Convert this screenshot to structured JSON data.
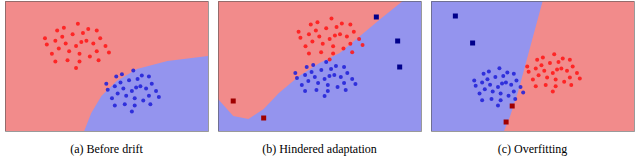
{
  "chart_data": [
    {
      "type": "scatter",
      "title": "(a) Before drift",
      "xlim": [
        0,
        10
      ],
      "ylim": [
        0,
        6.5
      ],
      "tick_labels": false,
      "regions": [
        {
          "color": "#f28b8b",
          "x": [
            0,
            10,
            10,
            0
          ],
          "y": [
            0,
            0,
            6.5,
            6.5
          ]
        },
        {
          "color": "#9494ee",
          "x": [
            3.9,
            4.25,
            4.75,
            5.5,
            6.5,
            8,
            10,
            10
          ],
          "y": [
            0,
            0.9,
            1.75,
            2.5,
            3.1,
            3.5,
            3.75,
            0
          ]
        }
      ],
      "series": [
        {
          "color": "#ff1a1a",
          "marker": "circle",
          "x": [
            3.5,
            4.01,
            2.99,
            3.67,
            3.16,
            4.35,
            2.65,
            3.84,
            3.33,
            4.18,
            2.82,
            4.69,
            2.31,
            4.52,
            2.48,
            3.67,
            3.08,
            4.1,
            2.9,
            4.95,
            2.06,
            3.59,
            3.5,
            4.52,
            2.48,
            4.61,
            2.57,
            5.12,
            1.97,
            3.76
          ],
          "values": [
            4.25,
            4.51,
            4.38,
            3.86,
            3.99,
            4.38,
            4.12,
            4.9,
            4.84,
            3.73,
            4.71,
            4.64,
            3.86,
            3.99,
            4.51,
            3.47,
            3.54,
            5.1,
            5.16,
            4.25,
            4.32,
            5.36,
            3.15,
            5.03,
            3.47,
            3.54,
            5.03,
            3.93,
            4.64,
            4.45
          ]
        },
        {
          "color": "#2424d8",
          "marker": "circle",
          "x": [
            6.25,
            6.67,
            5.83,
            6.39,
            5.97,
            6.95,
            5.55,
            6.53,
            6.11,
            6.81,
            5.69,
            7.23,
            5.27,
            7.09,
            5.41,
            6.39,
            5.9,
            6.74,
            5.76,
            7.44,
            5.06,
            6.32,
            6.25,
            7.09,
            5.41,
            7.16,
            5.48,
            7.58,
            4.99,
            6.46
          ],
          "values": [
            2.0,
            2.24,
            2.12,
            1.64,
            1.76,
            2.12,
            1.88,
            2.6,
            2.54,
            1.52,
            2.42,
            2.36,
            1.64,
            1.76,
            2.24,
            1.28,
            1.34,
            2.78,
            2.84,
            2.0,
            2.06,
            3.02,
            0.98,
            2.72,
            1.28,
            1.34,
            2.72,
            1.7,
            2.36,
            2.18
          ]
        }
      ]
    },
    {
      "type": "scatter",
      "title": "(b) Hindered adaptation",
      "xlim": [
        0,
        10
      ],
      "ylim": [
        0,
        6.5
      ],
      "tick_labels": false,
      "regions": [
        {
          "color": "#9494ee",
          "x": [
            0,
            10,
            10,
            0
          ],
          "y": [
            0,
            0,
            6.5,
            6.5
          ]
        },
        {
          "color": "#f28b8b",
          "x": [
            0,
            0,
            0.75,
            1.5,
            2.25,
            3,
            4,
            5,
            6,
            7,
            8,
            9.1
          ],
          "y": [
            6.5,
            1.6,
            0.75,
            0.6,
            1.1,
            1.9,
            2.75,
            3.4,
            3.9,
            4.75,
            5.6,
            6.5
          ]
        }
      ],
      "series": [
        {
          "color": "#ff1a1a",
          "marker": "circle",
          "x": [
            5.5,
            6.01,
            4.99,
            5.67,
            5.16,
            6.35,
            4.65,
            5.84,
            5.33,
            6.18,
            4.82,
            6.69,
            4.31,
            6.52,
            4.48,
            5.67,
            5.08,
            6.1,
            4.9,
            6.95,
            4.06,
            5.59,
            5.5,
            6.52,
            4.48,
            6.61,
            4.57,
            7.12,
            3.97,
            5.76
          ],
          "values": [
            4.6,
            4.84,
            4.72,
            4.24,
            4.36,
            4.72,
            4.48,
            5.2,
            5.14,
            4.12,
            5.02,
            4.96,
            4.24,
            4.36,
            4.84,
            3.88,
            3.94,
            5.38,
            5.44,
            4.6,
            4.66,
            5.62,
            3.58,
            5.32,
            3.88,
            3.94,
            5.32,
            4.3,
            4.96,
            4.78
          ]
        },
        {
          "color": "#2424d8",
          "marker": "circle",
          "x": [
            5.25,
            5.73,
            4.77,
            5.41,
            4.93,
            6.05,
            4.45,
            5.57,
            5.09,
            5.89,
            4.61,
            6.37,
            4.13,
            6.21,
            4.29,
            5.41,
            4.85,
            5.81,
            4.69,
            6.61,
            3.89,
            5.33,
            5.25,
            6.21,
            4.29,
            6.29,
            4.37,
            6.77,
            3.81,
            5.49
          ],
          "values": [
            2.6,
            2.8,
            2.7,
            2.3,
            2.4,
            2.7,
            2.5,
            3.1,
            3.05,
            2.2,
            2.95,
            2.9,
            2.3,
            2.4,
            2.8,
            2.0,
            2.05,
            3.25,
            3.3,
            2.6,
            2.65,
            3.45,
            1.75,
            3.2,
            2.0,
            2.05,
            3.2,
            2.35,
            2.9,
            2.75
          ]
        },
        {
          "color": "#00008b",
          "marker": "square",
          "x": [
            7.8,
            8.85,
            8.95
          ],
          "values": [
            5.7,
            4.5,
            3.2
          ]
        },
        {
          "color": "#a00000",
          "marker": "square",
          "x": [
            0.75,
            2.25
          ],
          "values": [
            1.5,
            0.65
          ]
        }
      ]
    },
    {
      "type": "scatter",
      "title": "(c) Overfitting",
      "xlim": [
        0,
        10
      ],
      "ylim": [
        0,
        6.5
      ],
      "tick_labels": false,
      "regions": [
        {
          "color": "#f28b8b",
          "x": [
            0,
            10,
            10,
            0
          ],
          "y": [
            0,
            0,
            6.5,
            6.5
          ]
        },
        {
          "color": "#9494ee",
          "x": [
            0,
            5.5,
            5.1,
            4.7,
            4.3,
            3.9,
            3.6,
            0
          ],
          "y": [
            6.5,
            6.5,
            5,
            3.5,
            2,
            0.75,
            0,
            0
          ]
        }
      ],
      "series": [
        {
          "color": "#ff1a1a",
          "marker": "circle",
          "x": [
            6.0,
            6.42,
            5.58,
            6.14,
            5.72,
            6.7,
            5.3,
            6.28,
            5.86,
            6.56,
            5.44,
            6.98,
            5.02,
            6.84,
            5.16,
            6.14,
            5.65,
            6.49,
            5.51,
            7.19,
            4.81,
            6.07,
            6.0,
            6.84,
            5.16,
            6.91,
            5.23,
            7.33,
            4.74,
            6.21
          ],
          "values": [
            2.9,
            3.12,
            3.01,
            2.57,
            2.68,
            3.01,
            2.79,
            3.45,
            3.4,
            2.46,
            3.29,
            3.23,
            2.57,
            2.68,
            3.12,
            2.24,
            2.3,
            3.62,
            3.67,
            2.9,
            2.96,
            3.84,
            1.97,
            3.56,
            2.24,
            2.3,
            3.56,
            2.63,
            3.23,
            3.07
          ]
        },
        {
          "color": "#2424d8",
          "marker": "circle",
          "x": [
            3.3,
            3.69,
            2.91,
            3.43,
            3.04,
            3.95,
            2.65,
            3.56,
            3.17,
            3.82,
            2.78,
            4.21,
            2.39,
            4.08,
            2.52,
            3.43,
            2.98,
            3.76,
            2.85,
            4.41,
            2.2,
            3.37,
            3.3,
            4.08,
            2.52,
            4.15,
            2.59,
            4.54,
            2.13,
            3.5
          ],
          "values": [
            2.2,
            2.42,
            2.31,
            1.87,
            1.98,
            2.31,
            2.09,
            2.75,
            2.7,
            1.76,
            2.59,
            2.53,
            1.87,
            1.98,
            2.42,
            1.54,
            1.6,
            2.92,
            2.97,
            2.2,
            2.26,
            3.14,
            1.27,
            2.86,
            1.54,
            1.6,
            2.86,
            1.93,
            2.53,
            2.37
          ]
        },
        {
          "color": "#00008b",
          "marker": "square",
          "x": [
            1.2,
            2.05
          ],
          "values": [
            5.75,
            4.4
          ]
        },
        {
          "color": "#a00000",
          "marker": "square",
          "x": [
            4.0,
            3.7
          ],
          "values": [
            1.25,
            0.45
          ]
        }
      ]
    }
  ]
}
